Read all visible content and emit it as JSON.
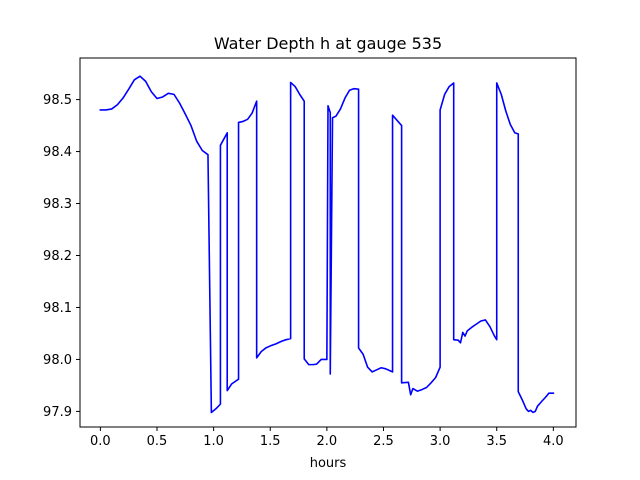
{
  "chart_data": {
    "type": "line",
    "title": "Water Depth h at gauge 535",
    "xlabel": "hours",
    "ylabel": "",
    "xlim": [
      -0.18,
      4.2
    ],
    "ylim": [
      97.87,
      98.58
    ],
    "xticks": [
      0.0,
      0.5,
      1.0,
      1.5,
      2.0,
      2.5,
      3.0,
      3.5,
      4.0
    ],
    "xtick_labels": [
      "0.0",
      "0.5",
      "1.0",
      "1.5",
      "2.0",
      "2.5",
      "3.0",
      "3.5",
      "4.0"
    ],
    "yticks": [
      97.9,
      98.0,
      98.1,
      98.2,
      98.3,
      98.4,
      98.5
    ],
    "ytick_labels": [
      "97.9",
      "98.0",
      "98.1",
      "98.2",
      "98.3",
      "98.4",
      "98.5"
    ],
    "grid": false,
    "legend": "none",
    "series": [
      {
        "color": "#0000ff",
        "x": [
          0.0,
          0.05,
          0.1,
          0.15,
          0.2,
          0.25,
          0.3,
          0.35,
          0.4,
          0.45,
          0.5,
          0.55,
          0.6,
          0.65,
          0.7,
          0.75,
          0.8,
          0.85,
          0.9,
          0.95,
          0.98,
          0.98,
          1.02,
          1.06,
          1.06,
          1.12,
          1.12,
          1.16,
          1.22,
          1.22,
          1.26,
          1.3,
          1.34,
          1.38,
          1.38,
          1.42,
          1.46,
          1.5,
          1.55,
          1.6,
          1.64,
          1.68,
          1.68,
          1.72,
          1.76,
          1.8,
          1.8,
          1.84,
          1.88,
          1.91,
          1.95,
          2.0,
          2.01,
          2.03,
          2.03,
          2.05,
          2.08,
          2.12,
          2.16,
          2.2,
          2.24,
          2.28,
          2.28,
          2.32,
          2.36,
          2.4,
          2.44,
          2.48,
          2.52,
          2.56,
          2.58,
          2.58,
          2.62,
          2.66,
          2.66,
          2.72,
          2.74,
          2.76,
          2.8,
          2.84,
          2.88,
          2.92,
          2.96,
          3.0,
          3.0,
          3.04,
          3.08,
          3.12,
          3.12,
          3.16,
          3.18,
          3.2,
          3.22,
          3.24,
          3.28,
          3.32,
          3.36,
          3.4,
          3.44,
          3.48,
          3.5,
          3.5,
          3.54,
          3.58,
          3.62,
          3.66,
          3.69,
          3.69,
          3.73,
          3.76,
          3.78,
          3.8,
          3.82,
          3.84,
          3.86,
          3.88,
          3.9,
          3.93,
          3.96,
          4.0
        ],
        "y": [
          98.48,
          98.48,
          98.482,
          98.49,
          98.503,
          98.52,
          98.538,
          98.545,
          98.535,
          98.515,
          98.502,
          98.505,
          98.512,
          98.51,
          98.493,
          98.472,
          98.45,
          98.42,
          98.402,
          98.394,
          97.9,
          97.898,
          97.905,
          97.914,
          98.412,
          98.436,
          97.94,
          97.953,
          97.962,
          98.456,
          98.458,
          98.462,
          98.474,
          98.497,
          98.003,
          98.015,
          98.022,
          98.026,
          98.03,
          98.035,
          98.038,
          98.04,
          98.533,
          98.525,
          98.51,
          98.497,
          98.001,
          97.99,
          97.99,
          97.991,
          98.0,
          98.0,
          98.488,
          98.475,
          97.972,
          98.465,
          98.468,
          98.482,
          98.503,
          98.518,
          98.521,
          98.52,
          98.022,
          98.01,
          97.985,
          97.976,
          97.98,
          97.984,
          97.982,
          97.978,
          97.976,
          98.47,
          98.46,
          98.45,
          97.955,
          97.956,
          97.932,
          97.944,
          97.939,
          97.942,
          97.946,
          97.955,
          97.965,
          97.985,
          98.48,
          98.51,
          98.525,
          98.532,
          98.038,
          98.037,
          98.032,
          98.052,
          98.045,
          98.055,
          98.062,
          98.068,
          98.074,
          98.076,
          98.063,
          98.045,
          98.038,
          98.532,
          98.51,
          98.478,
          98.452,
          98.436,
          98.434,
          97.938,
          97.92,
          97.905,
          97.9,
          97.902,
          97.898,
          97.9,
          97.91,
          97.915,
          97.92,
          97.927,
          97.935,
          97.935
        ]
      }
    ]
  }
}
